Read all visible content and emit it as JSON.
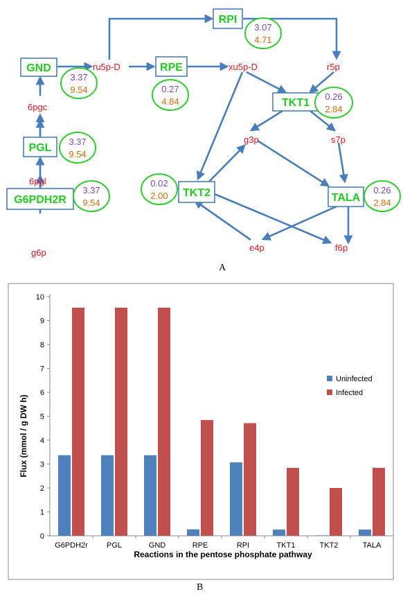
{
  "diagram": {
    "reactions": [
      {
        "id": "GND",
        "label": "GND",
        "uninfected": "3.37",
        "infected": "9.54"
      },
      {
        "id": "PGL",
        "label": "PGL",
        "uninfected": "3.37",
        "infected": "9.54"
      },
      {
        "id": "G6PDH2R",
        "label": "G6PDH2R",
        "uninfected": "3.37",
        "infected": "9.54"
      },
      {
        "id": "RPE",
        "label": "RPE",
        "uninfected": "0.27",
        "infected": "4.84"
      },
      {
        "id": "RPI",
        "label": "RPI",
        "uninfected": "3.07",
        "infected": "4.71"
      },
      {
        "id": "TKT1",
        "label": "TKT1",
        "uninfected": "0.26",
        "infected": "2.84"
      },
      {
        "id": "TKT2",
        "label": "TKT2",
        "uninfected": "0.02",
        "infected": "2.00"
      },
      {
        "id": "TALA",
        "label": "TALA",
        "uninfected": "0.26",
        "infected": "2.84"
      }
    ],
    "metabolites": {
      "ru5p": "ru5p-D",
      "xu5p": "xu5p-D",
      "r5p": "r5p",
      "pgc": "6pgc",
      "pgl": "6pgl",
      "g6p": "g6p",
      "g3p": "g3p",
      "s7p": "s7p",
      "e4p": "e4p",
      "f6p": "f6p"
    },
    "panel_label": "A"
  },
  "chart_data": {
    "type": "bar",
    "categories": [
      "G6PDH2r",
      "PGL",
      "GND",
      "RPE",
      "RPI",
      "TKT1",
      "TKT2",
      "TALA"
    ],
    "series": [
      {
        "name": "Uninfected",
        "color": "#4f81bd",
        "values": [
          3.37,
          3.37,
          3.37,
          0.27,
          3.07,
          0.26,
          0.02,
          0.26
        ]
      },
      {
        "name": "Infected",
        "color": "#c0504d",
        "values": [
          9.54,
          9.54,
          9.54,
          4.84,
          4.71,
          2.84,
          2.0,
          2.84
        ]
      }
    ],
    "title": "",
    "xlabel": "Reactions in the pentose phosphate pathway",
    "ylabel": "Flux (mmol / g DW h)",
    "ylim": [
      0,
      10
    ],
    "yticks": [
      "0",
      "1",
      "2",
      "3",
      "4",
      "5",
      "6",
      "7",
      "8",
      "9",
      "10"
    ],
    "grid": false,
    "legend_position": "right"
  },
  "panel_b_label": "B"
}
